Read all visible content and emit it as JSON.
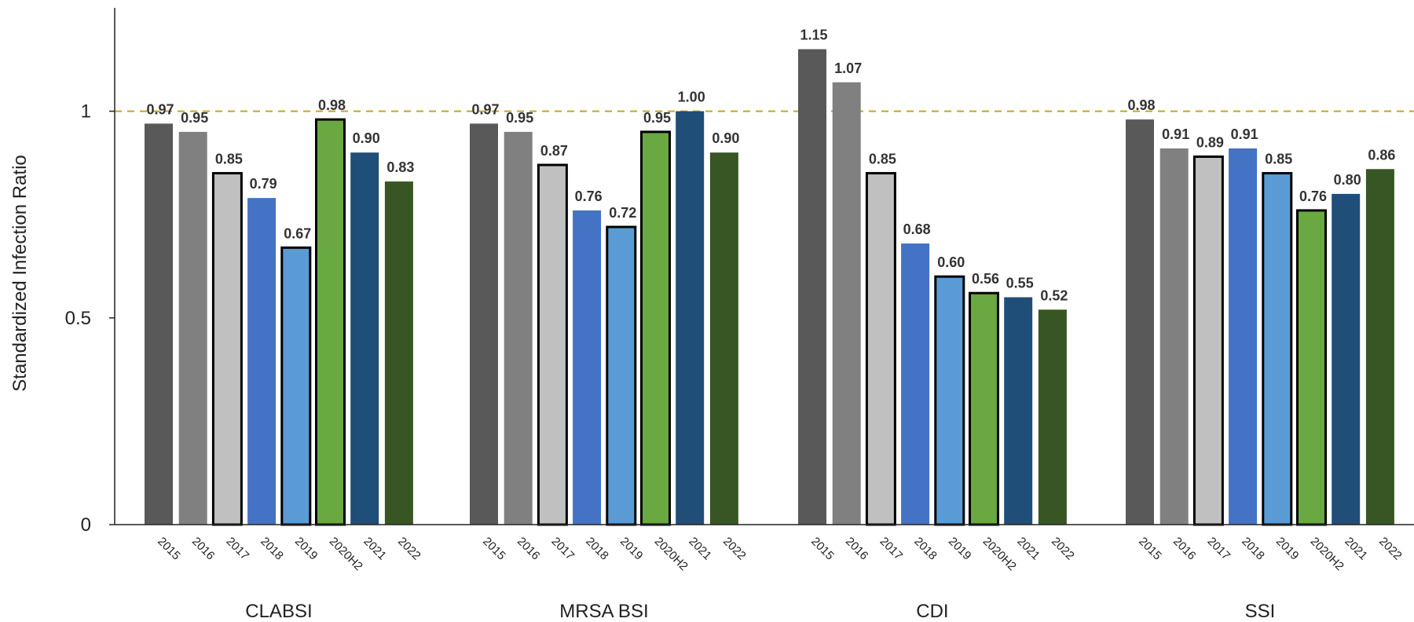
{
  "chart_data": {
    "type": "bar",
    "ylabel": "Standardized Infection Ratio",
    "ylim": [
      0,
      1.25
    ],
    "yticks": [
      0,
      0.5,
      1
    ],
    "reference_line": {
      "y": 1,
      "style": "dashed",
      "color": "#C9A227"
    },
    "years": [
      "2015",
      "2016",
      "2017",
      "2018",
      "2019",
      "2020H2",
      "2021",
      "2022"
    ],
    "year_colors": [
      "#595959",
      "#808080",
      "#C0C0C0",
      "#4472C4",
      "#5B9BD5",
      "#6AA842",
      "#1F4E79",
      "#375623"
    ],
    "year_outlined": [
      false,
      false,
      true,
      false,
      true,
      true,
      false,
      false
    ],
    "groups": [
      {
        "name": "CLABSI",
        "values": [
          0.97,
          0.95,
          0.85,
          0.79,
          0.67,
          0.98,
          0.9,
          0.83
        ],
        "labels": [
          "0.97",
          "0.95",
          "0.85",
          "0.79",
          "0.67",
          "0.98",
          "0.90",
          "0.83"
        ]
      },
      {
        "name": "MRSA BSI",
        "values": [
          0.97,
          0.95,
          0.87,
          0.76,
          0.72,
          0.95,
          1.0,
          0.9
        ],
        "labels": [
          "0.97",
          "0.95",
          "0.87",
          "0.76",
          "0.72",
          "0.95",
          "1.00",
          "0.90"
        ]
      },
      {
        "name": "CDI",
        "values": [
          1.15,
          1.07,
          0.85,
          0.68,
          0.6,
          0.56,
          0.55,
          0.52
        ],
        "labels": [
          "1.15",
          "1.07",
          "0.85",
          "0.68",
          "0.60",
          "0.56",
          "0.55",
          "0.52"
        ]
      },
      {
        "name": "SSI",
        "values": [
          0.98,
          0.91,
          0.89,
          0.91,
          0.85,
          0.76,
          0.8,
          0.86
        ],
        "labels": [
          "0.98",
          "0.91",
          "0.89",
          "0.91",
          "0.85",
          "0.76",
          "0.80",
          "0.86"
        ]
      }
    ]
  }
}
